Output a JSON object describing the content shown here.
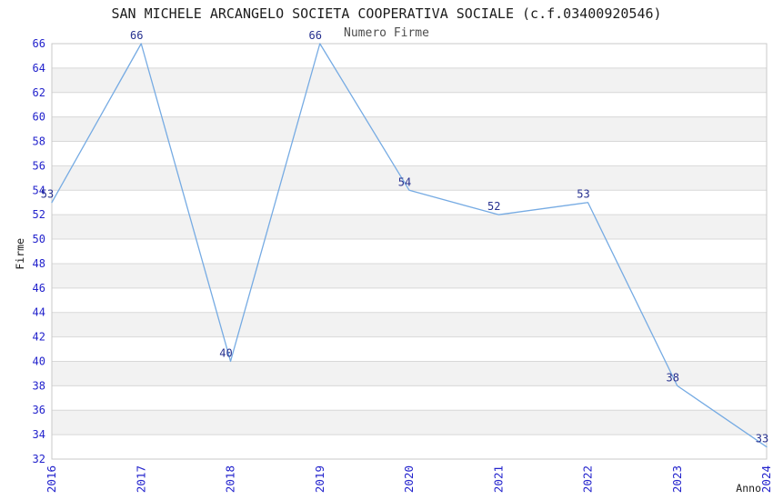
{
  "chart_data": {
    "type": "line",
    "title": "SAN MICHELE ARCANGELO SOCIETA COOPERATIVA SOCIALE (c.f.03400920546)",
    "subtitle": "Numero Firme",
    "xlabel": "Anno",
    "ylabel": "Firme",
    "categories": [
      "2016",
      "2017",
      "2018",
      "2019",
      "2020",
      "2021",
      "2022",
      "2023",
      "2024"
    ],
    "series": [
      {
        "name": "Numero Firme",
        "values": [
          53,
          66,
          40,
          66,
          54,
          52,
          53,
          38,
          33
        ]
      }
    ],
    "ylim": [
      32,
      66
    ],
    "ytick_step": 2,
    "xtick_rotation": 90,
    "grid": "horizontal",
    "stripes": "alternating-bands",
    "legend": "none",
    "colors": {
      "line": "#76abe3",
      "tick_label": "#2222cc",
      "value_label": "#26308f",
      "stripe": "#f2f2f2",
      "grid": "#d8d8d8",
      "frame": "#c9c9c9",
      "title": "#1c1c1c",
      "subtitle": "#4d4d4d"
    }
  }
}
